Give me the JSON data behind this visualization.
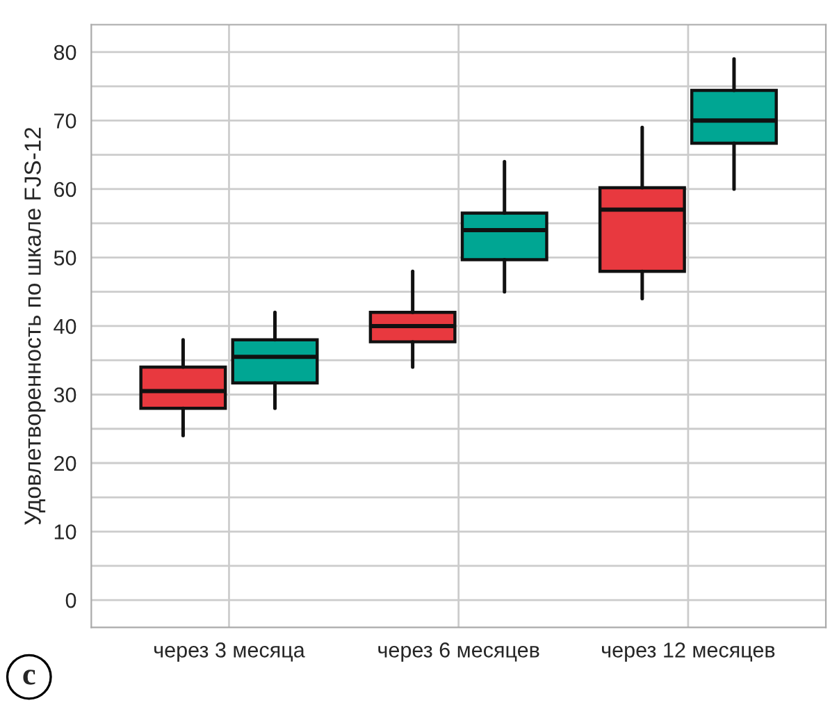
{
  "chart_data": {
    "type": "box",
    "ylabel": "Удовлетворенность по шкале FJS-12",
    "categories": [
      "через 3 месяца",
      "через 6 месяцев",
      "через 12 месяцев"
    ],
    "series": [
      {
        "color": "#e8393f",
        "boxes": [
          {
            "low": 24,
            "q1": 28,
            "median": 30.5,
            "q3": 34,
            "high": 38
          },
          {
            "low": 34,
            "q1": 37.7,
            "median": 40,
            "q3": 42,
            "high": 48
          },
          {
            "low": 44,
            "q1": 48,
            "median": 57,
            "q3": 60.2,
            "high": 69
          }
        ]
      },
      {
        "color": "#00a693",
        "boxes": [
          {
            "low": 28,
            "q1": 31.7,
            "median": 35.5,
            "q3": 38,
            "high": 42
          },
          {
            "low": 45,
            "q1": 49.7,
            "median": 54,
            "q3": 56.5,
            "high": 64
          },
          {
            "low": 60,
            "q1": 66.7,
            "median": 70,
            "q3": 74.4,
            "high": 79
          }
        ]
      }
    ],
    "ylim": [
      -4,
      84
    ],
    "yticks": [
      0,
      {
        "value": 5,
        "label": null
      },
      10,
      {
        "value": 15,
        "label": null
      },
      20,
      {
        "value": 25,
        "label": null
      },
      30,
      {
        "value": 35,
        "label": null
      },
      40,
      {
        "value": 45,
        "label": null
      },
      50,
      {
        "value": 55,
        "label": null
      },
      60,
      {
        "value": 65,
        "label": null
      },
      70,
      {
        "value": 75,
        "label": null
      },
      80
    ],
    "grid": true,
    "legend": false,
    "annotations": [
      "c"
    ]
  }
}
